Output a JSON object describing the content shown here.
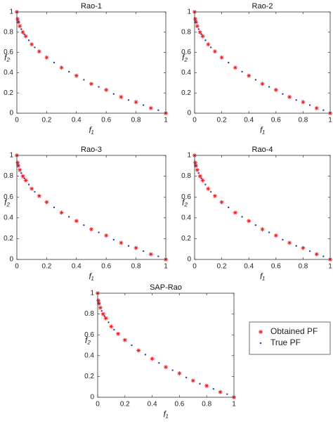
{
  "chart_data": [
    {
      "type": "scatter",
      "title": "Rao-1",
      "xlabel": "f₁",
      "ylabel": "f₂",
      "xlim": [
        0,
        1
      ],
      "ylim": [
        0,
        1
      ],
      "xticks": [
        0,
        0.2,
        0.4,
        0.6,
        0.8,
        1
      ],
      "yticks": [
        0,
        0.2,
        0.4,
        0.6,
        0.8,
        1
      ],
      "series": [
        {
          "color": "#ee1c25",
          "marker": "asterisk",
          "x": [
            0,
            0.005,
            0.01,
            0.02,
            0.04,
            0.06,
            0.1,
            0.15,
            0.2,
            0.3,
            0.4,
            0.5,
            0.6,
            0.7,
            0.8,
            0.9,
            1
          ],
          "values": [
            1,
            0.93,
            0.9,
            0.86,
            0.8,
            0.76,
            0.68,
            0.61,
            0.55,
            0.45,
            0.37,
            0.29,
            0.23,
            0.16,
            0.11,
            0.05,
            0
          ]
        },
        {
          "color": "#2c3e9e",
          "marker": "dot",
          "x": [
            0.01,
            0.03,
            0.05,
            0.08,
            0.12,
            0.25,
            0.35,
            0.45,
            0.55,
            0.65,
            0.75,
            0.85,
            0.95
          ],
          "values": [
            0.9,
            0.83,
            0.78,
            0.72,
            0.65,
            0.5,
            0.41,
            0.33,
            0.26,
            0.19,
            0.13,
            0.08,
            0.03
          ]
        }
      ]
    },
    {
      "type": "scatter",
      "title": "Rao-2",
      "xlabel": "f₁",
      "ylabel": "f₂",
      "xlim": [
        0,
        1
      ],
      "ylim": [
        0,
        1
      ],
      "xticks": [
        0,
        0.2,
        0.4,
        0.6,
        0.8,
        1
      ],
      "yticks": [
        0,
        0.2,
        0.4,
        0.6,
        0.8,
        1
      ],
      "series": [
        {
          "color": "#ee1c25",
          "marker": "asterisk",
          "x": [
            0,
            0.005,
            0.01,
            0.02,
            0.04,
            0.06,
            0.1,
            0.15,
            0.2,
            0.3,
            0.4,
            0.5,
            0.6,
            0.7,
            0.8,
            0.9,
            1
          ],
          "values": [
            1,
            0.93,
            0.9,
            0.86,
            0.8,
            0.76,
            0.68,
            0.61,
            0.55,
            0.45,
            0.37,
            0.29,
            0.23,
            0.16,
            0.11,
            0.05,
            0
          ]
        },
        {
          "color": "#2c3e9e",
          "marker": "dot",
          "x": [
            0.01,
            0.03,
            0.05,
            0.08,
            0.12,
            0.25,
            0.35,
            0.45,
            0.55,
            0.65,
            0.75,
            0.85,
            0.95
          ],
          "values": [
            0.9,
            0.83,
            0.78,
            0.72,
            0.65,
            0.5,
            0.41,
            0.33,
            0.26,
            0.19,
            0.13,
            0.08,
            0.03
          ]
        }
      ]
    },
    {
      "type": "scatter",
      "title": "Rao-3",
      "xlabel": "f₁",
      "ylabel": "f₂",
      "xlim": [
        0,
        1
      ],
      "ylim": [
        0,
        1
      ],
      "xticks": [
        0,
        0.2,
        0.4,
        0.6,
        0.8,
        1
      ],
      "yticks": [
        0,
        0.2,
        0.4,
        0.6,
        0.8,
        1
      ],
      "series": [
        {
          "color": "#ee1c25",
          "marker": "asterisk",
          "x": [
            0,
            0.005,
            0.01,
            0.02,
            0.04,
            0.06,
            0.1,
            0.15,
            0.2,
            0.3,
            0.4,
            0.5,
            0.6,
            0.7,
            0.8,
            0.9,
            1
          ],
          "values": [
            1,
            0.93,
            0.9,
            0.86,
            0.8,
            0.76,
            0.68,
            0.61,
            0.55,
            0.45,
            0.37,
            0.29,
            0.23,
            0.16,
            0.11,
            0.05,
            0
          ]
        },
        {
          "color": "#2c3e9e",
          "marker": "dot",
          "x": [
            0.01,
            0.03,
            0.05,
            0.08,
            0.12,
            0.25,
            0.35,
            0.45,
            0.55,
            0.65,
            0.75,
            0.85,
            0.95
          ],
          "values": [
            0.9,
            0.83,
            0.78,
            0.72,
            0.65,
            0.5,
            0.41,
            0.33,
            0.26,
            0.19,
            0.13,
            0.08,
            0.03
          ]
        }
      ]
    },
    {
      "type": "scatter",
      "title": "Rao-4",
      "xlabel": "f₁",
      "ylabel": "f₂",
      "xlim": [
        0,
        1
      ],
      "ylim": [
        0,
        1
      ],
      "xticks": [
        0,
        0.2,
        0.4,
        0.6,
        0.8,
        1
      ],
      "yticks": [
        0,
        0.2,
        0.4,
        0.6,
        0.8,
        1
      ],
      "series": [
        {
          "color": "#ee1c25",
          "marker": "asterisk",
          "x": [
            0,
            0.005,
            0.01,
            0.02,
            0.04,
            0.06,
            0.1,
            0.15,
            0.2,
            0.3,
            0.4,
            0.5,
            0.6,
            0.7,
            0.8,
            0.9,
            1
          ],
          "values": [
            1,
            0.93,
            0.9,
            0.86,
            0.8,
            0.76,
            0.68,
            0.61,
            0.55,
            0.45,
            0.37,
            0.29,
            0.23,
            0.16,
            0.11,
            0.05,
            0
          ]
        },
        {
          "color": "#2c3e9e",
          "marker": "dot",
          "x": [
            0.01,
            0.03,
            0.05,
            0.08,
            0.12,
            0.25,
            0.35,
            0.45,
            0.55,
            0.65,
            0.75,
            0.85,
            0.95
          ],
          "values": [
            0.9,
            0.83,
            0.78,
            0.72,
            0.65,
            0.5,
            0.41,
            0.33,
            0.26,
            0.19,
            0.13,
            0.08,
            0.03
          ]
        }
      ]
    },
    {
      "type": "scatter",
      "title": "SAP-Rao",
      "xlabel": "f₁",
      "ylabel": "f₂",
      "legend": "outside right",
      "xlim": [
        0,
        1
      ],
      "ylim": [
        0,
        1
      ],
      "xticks": [
        0,
        0.2,
        0.4,
        0.6,
        0.8,
        1
      ],
      "yticks": [
        0,
        0.2,
        0.4,
        0.6,
        0.8,
        1
      ],
      "series": [
        {
          "name": "Obtained PF",
          "color": "#ee1c25",
          "marker": "asterisk",
          "x": [
            0,
            0.005,
            0.01,
            0.02,
            0.04,
            0.06,
            0.1,
            0.15,
            0.2,
            0.3,
            0.4,
            0.5,
            0.6,
            0.7,
            0.8,
            0.9,
            1
          ],
          "values": [
            1,
            0.93,
            0.9,
            0.86,
            0.8,
            0.76,
            0.68,
            0.61,
            0.55,
            0.45,
            0.37,
            0.29,
            0.23,
            0.16,
            0.11,
            0.05,
            0
          ]
        },
        {
          "name": "True PF",
          "color": "#2c3e9e",
          "marker": "dot",
          "x": [
            0.01,
            0.03,
            0.05,
            0.08,
            0.12,
            0.25,
            0.35,
            0.45,
            0.55,
            0.65,
            0.75,
            0.85,
            0.95
          ],
          "values": [
            0.9,
            0.83,
            0.78,
            0.72,
            0.65,
            0.5,
            0.41,
            0.33,
            0.26,
            0.19,
            0.13,
            0.08,
            0.03
          ]
        }
      ]
    }
  ]
}
